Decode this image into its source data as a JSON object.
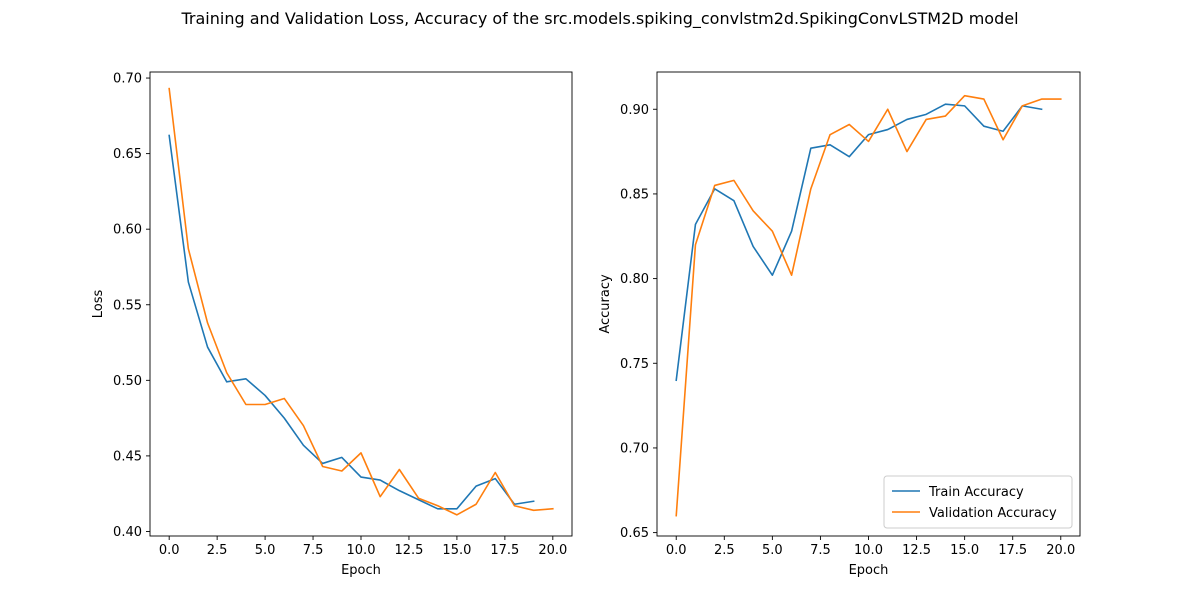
{
  "figure": {
    "title": "Training and Validation Loss, Accuracy of the src.models.spiking_convlstm2d.SpikingConvLSTM2D model"
  },
  "chart_data": [
    {
      "type": "line",
      "title": "",
      "xlabel": "Epoch",
      "ylabel": "Loss",
      "xlim": [
        -1,
        21
      ],
      "ylim": [
        0.397,
        0.704
      ],
      "xticks": [
        0.0,
        2.5,
        5.0,
        7.5,
        10.0,
        12.5,
        15.0,
        17.5,
        20.0
      ],
      "xtick_labels": [
        "0.0",
        "2.5",
        "5.0",
        "7.5",
        "10.0",
        "12.5",
        "15.0",
        "17.5",
        "20.0"
      ],
      "yticks": [
        0.4,
        0.45,
        0.5,
        0.55,
        0.6,
        0.65,
        0.7
      ],
      "ytick_labels": [
        "0.40",
        "0.45",
        "0.50",
        "0.55",
        "0.60",
        "0.65",
        "0.70"
      ],
      "grid": false,
      "legend": null,
      "series": [
        {
          "color": "#1f77b4",
          "x": [
            0,
            1,
            2,
            3,
            4,
            5,
            6,
            7,
            8,
            9,
            10,
            11,
            12,
            13,
            14,
            15,
            16,
            17,
            18,
            19
          ],
          "y": [
            0.662,
            0.565,
            0.522,
            0.499,
            0.501,
            0.49,
            0.475,
            0.457,
            0.445,
            0.449,
            0.436,
            0.434,
            0.427,
            0.421,
            0.415,
            0.415,
            0.43,
            0.435,
            0.418,
            0.42
          ]
        },
        {
          "color": "#ff7f0e",
          "x": [
            0,
            1,
            2,
            3,
            4,
            5,
            6,
            7,
            8,
            9,
            10,
            11,
            12,
            13,
            14,
            15,
            16,
            17,
            18,
            19,
            20
          ],
          "y": [
            0.693,
            0.587,
            0.538,
            0.505,
            0.484,
            0.484,
            0.488,
            0.47,
            0.443,
            0.44,
            0.452,
            0.423,
            0.441,
            0.422,
            0.417,
            0.411,
            0.418,
            0.439,
            0.417,
            0.414,
            0.415
          ]
        }
      ]
    },
    {
      "type": "line",
      "title": "",
      "xlabel": "Epoch",
      "ylabel": "Accuracy",
      "xlim": [
        -1,
        21
      ],
      "ylim": [
        0.648,
        0.922
      ],
      "xticks": [
        0.0,
        2.5,
        5.0,
        7.5,
        10.0,
        12.5,
        15.0,
        17.5,
        20.0
      ],
      "xtick_labels": [
        "0.0",
        "2.5",
        "5.0",
        "7.5",
        "10.0",
        "12.5",
        "15.0",
        "17.5",
        "20.0"
      ],
      "yticks": [
        0.65,
        0.7,
        0.75,
        0.8,
        0.85,
        0.9
      ],
      "ytick_labels": [
        "0.65",
        "0.70",
        "0.75",
        "0.80",
        "0.85",
        "0.90"
      ],
      "grid": false,
      "legend": "lower right",
      "series": [
        {
          "name": "Train Accuracy",
          "color": "#1f77b4",
          "x": [
            0,
            1,
            2,
            3,
            4,
            5,
            6,
            7,
            8,
            9,
            10,
            11,
            12,
            13,
            14,
            15,
            16,
            17,
            18,
            19
          ],
          "y": [
            0.74,
            0.832,
            0.853,
            0.846,
            0.819,
            0.802,
            0.828,
            0.877,
            0.879,
            0.872,
            0.885,
            0.888,
            0.894,
            0.897,
            0.903,
            0.902,
            0.89,
            0.887,
            0.902,
            0.9
          ]
        },
        {
          "name": "Validation Accuracy",
          "color": "#ff7f0e",
          "x": [
            0,
            1,
            2,
            3,
            4,
            5,
            6,
            7,
            8,
            9,
            10,
            11,
            12,
            13,
            14,
            15,
            16,
            17,
            18,
            19,
            20
          ],
          "y": [
            0.66,
            0.82,
            0.855,
            0.858,
            0.84,
            0.828,
            0.802,
            0.853,
            0.885,
            0.891,
            0.881,
            0.9,
            0.875,
            0.894,
            0.896,
            0.908,
            0.906,
            0.882,
            0.902,
            0.906,
            0.906
          ]
        }
      ]
    }
  ]
}
